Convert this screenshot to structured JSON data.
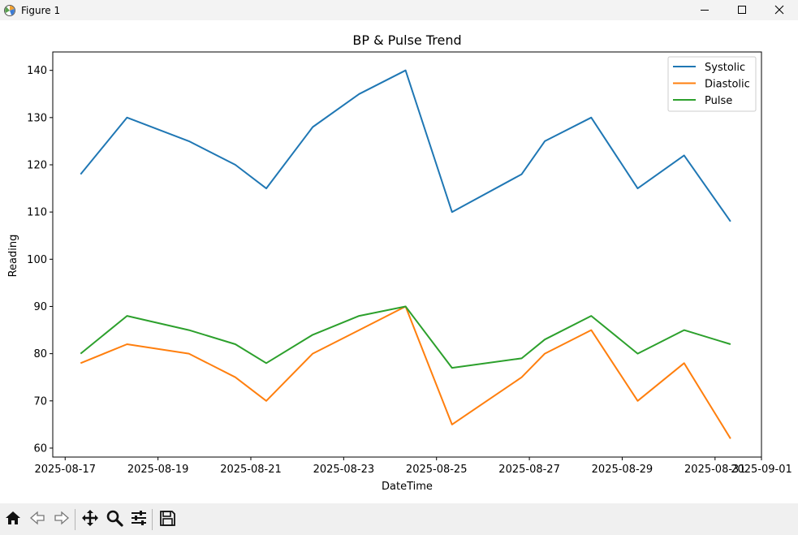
{
  "window": {
    "title": "Figure 1",
    "icon": "matplotlib-figure-icon",
    "controls": [
      "minimize-icon",
      "maximize-icon",
      "close-icon"
    ]
  },
  "toolbar": {
    "buttons": [
      "home-icon",
      "back-arrow-icon",
      "forward-arrow-icon",
      "pan-move-icon",
      "zoom-magnifier-icon",
      "configure-subplots-icon",
      "save-floppy-icon"
    ]
  },
  "chart_data": {
    "type": "line",
    "title": "BP & Pulse Trend",
    "xlabel": "DateTime",
    "ylabel": "Reading",
    "x": [
      "2025-08-17 08:00",
      "2025-08-18 08:00",
      "2025-08-19 16:00",
      "2025-08-20 16:00",
      "2025-08-21 08:00",
      "2025-08-22 08:00",
      "2025-08-23 08:00",
      "2025-08-24 08:00",
      "2025-08-25 08:00",
      "2025-08-26 20:00",
      "2025-08-27 08:00",
      "2025-08-28 08:00",
      "2025-08-29 08:00",
      "2025-08-30 08:00",
      "2025-08-31 08:00"
    ],
    "series": [
      {
        "name": "Systolic",
        "color": "#1f77b4",
        "values": [
          118,
          130,
          125,
          120,
          115,
          128,
          135,
          140,
          110,
          118,
          125,
          130,
          115,
          122,
          108
        ]
      },
      {
        "name": "Diastolic",
        "color": "#ff7f0e",
        "values": [
          78,
          82,
          80,
          75,
          70,
          80,
          85,
          90,
          65,
          75,
          80,
          85,
          70,
          78,
          62
        ]
      },
      {
        "name": "Pulse",
        "color": "#2ca02c",
        "values": [
          80,
          88,
          85,
          82,
          78,
          84,
          88,
          90,
          77,
          79,
          83,
          88,
          80,
          85,
          82
        ]
      }
    ],
    "xticks": [
      "2025-08-17",
      "2025-08-19",
      "2025-08-21",
      "2025-08-23",
      "2025-08-25",
      "2025-08-27",
      "2025-08-29",
      "2025-08-31",
      "2025-09-01"
    ],
    "yticks": [
      60,
      70,
      80,
      90,
      100,
      110,
      120,
      130,
      140
    ],
    "xlim": [
      "2025-08-16 17:36",
      "2025-09-01 00:00"
    ],
    "ylim": [
      58.1,
      143.9
    ],
    "grid": false,
    "legend": "top-right"
  }
}
